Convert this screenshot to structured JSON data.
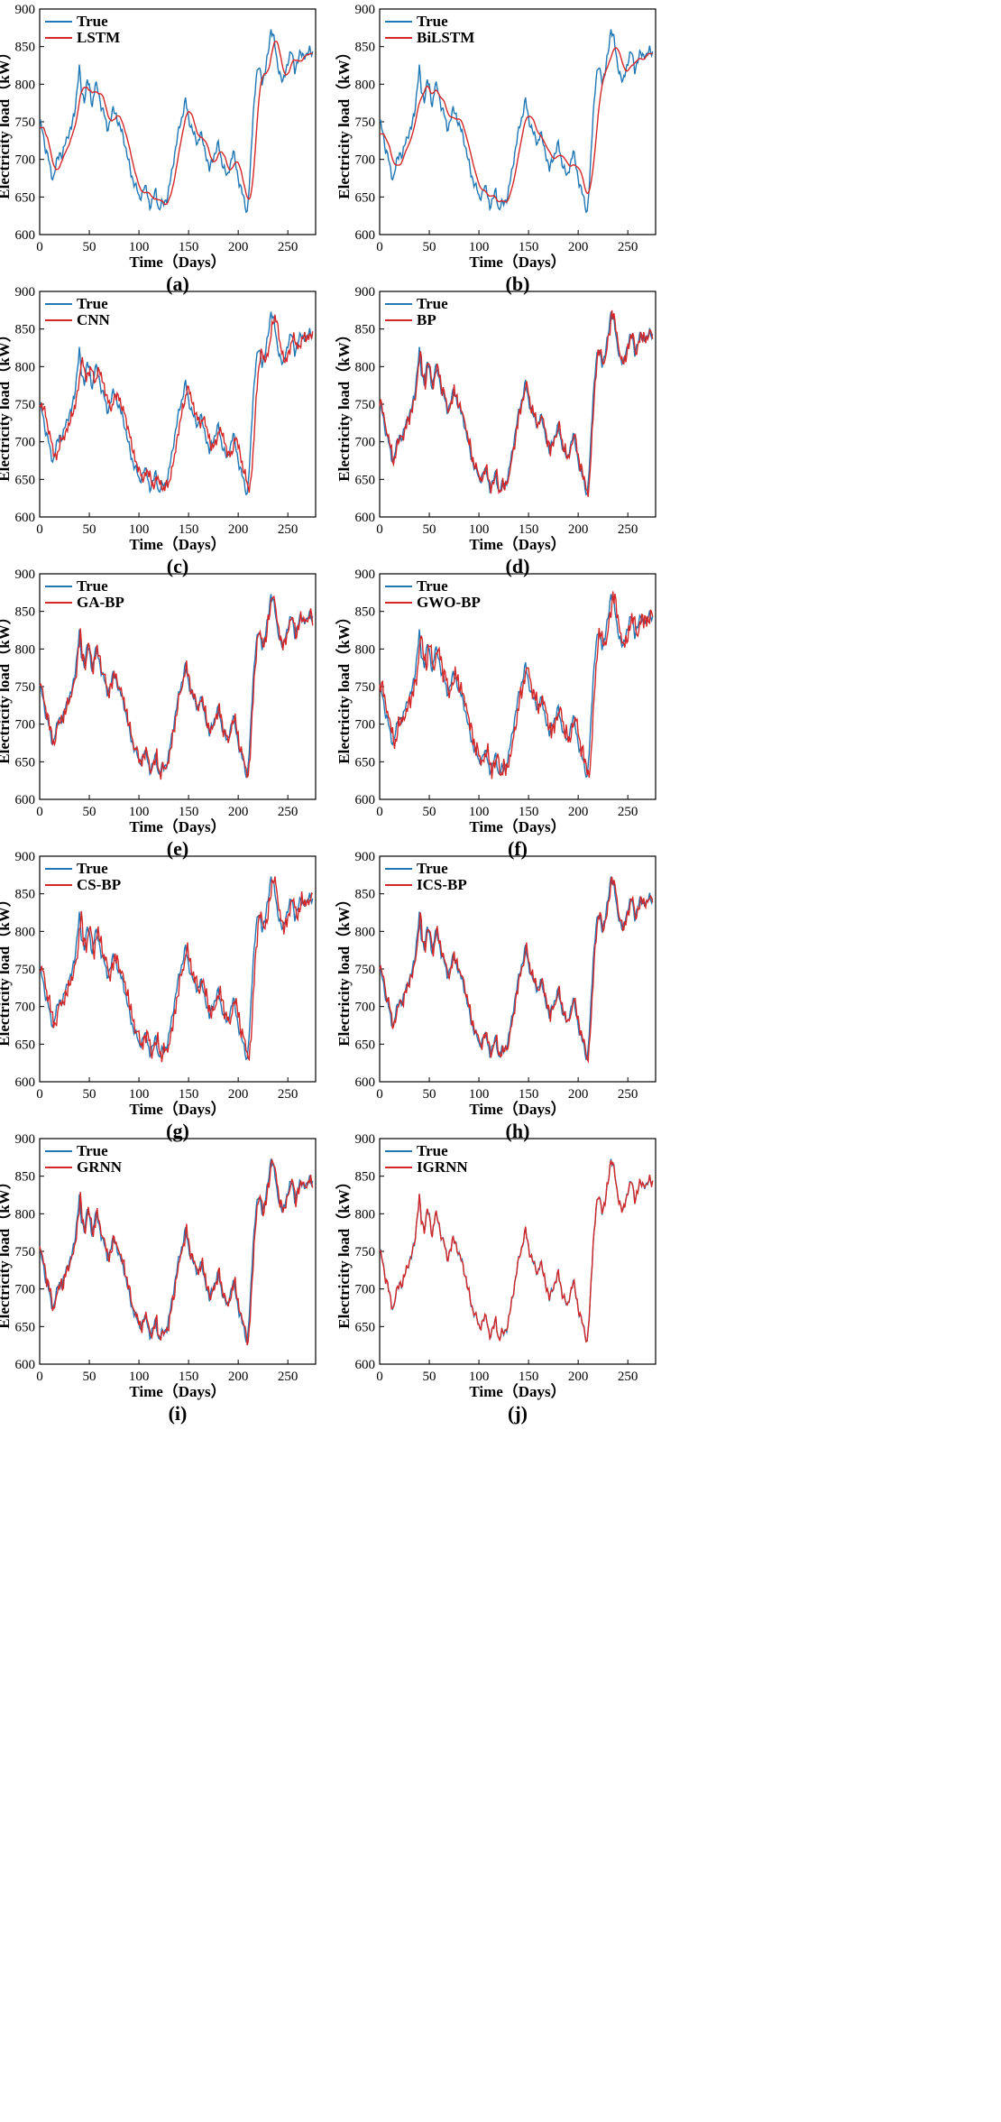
{
  "colors": {
    "true_series": "#1f77b4",
    "pred_series": "#d62728",
    "axis": "#000000"
  },
  "common": {
    "xlabel": "Time（Days）",
    "ylabel": "Electricity load（kW）",
    "xlim": [
      0,
      278
    ],
    "ylim": [
      600,
      900
    ],
    "xticks": [
      0,
      50,
      100,
      150,
      200,
      250
    ],
    "yticks": [
      600,
      650,
      700,
      750,
      800,
      850,
      900
    ]
  },
  "true_series": {
    "name": "True",
    "x": [
      0,
      3,
      6,
      9,
      12,
      14,
      17,
      20,
      23,
      26,
      29,
      32,
      35,
      38,
      40,
      42,
      45,
      48,
      50,
      53,
      56,
      59,
      62,
      65,
      68,
      71,
      74,
      77,
      80,
      83,
      86,
      89,
      92,
      95,
      98,
      100,
      102,
      105,
      108,
      111,
      114,
      117,
      120,
      123,
      126,
      129,
      132,
      135,
      138,
      141,
      144,
      147,
      150,
      153,
      156,
      159,
      162,
      165,
      168,
      171,
      174,
      177,
      180,
      183,
      186,
      189,
      192,
      195,
      198,
      201,
      204,
      207,
      209,
      212,
      215,
      218,
      221,
      224,
      227,
      230,
      233,
      236,
      239,
      242,
      245,
      248,
      251,
      254,
      257,
      260,
      263,
      266,
      269,
      272,
      275
    ],
    "y": [
      748,
      740,
      712,
      700,
      680,
      675,
      695,
      710,
      705,
      722,
      735,
      742,
      760,
      798,
      822,
      790,
      780,
      805,
      795,
      772,
      800,
      790,
      772,
      760,
      740,
      752,
      765,
      760,
      745,
      735,
      720,
      700,
      680,
      670,
      660,
      648,
      652,
      662,
      658,
      638,
      645,
      660,
      632,
      640,
      645,
      650,
      675,
      700,
      722,
      745,
      760,
      778,
      755,
      742,
      730,
      722,
      735,
      720,
      705,
      685,
      700,
      710,
      720,
      700,
      688,
      675,
      695,
      710,
      690,
      670,
      655,
      640,
      630,
      680,
      760,
      810,
      822,
      805,
      815,
      840,
      875,
      860,
      830,
      815,
      800,
      820,
      835,
      842,
      820,
      830,
      842,
      840,
      835,
      848,
      842
    ]
  },
  "chart_data": [
    {
      "type": "line",
      "caption": "(a)",
      "xlabel": "Time（Days）",
      "ylabel": "Electricity load（kW）",
      "xlim": [
        0,
        278
      ],
      "ylim": [
        600,
        900
      ],
      "legend": "top-left",
      "series": [
        {
          "name": "True"
        },
        {
          "name": "LSTM",
          "mode": "smooth",
          "lag": 4,
          "window": 4,
          "noise": 0
        }
      ]
    },
    {
      "type": "line",
      "caption": "(b)",
      "xlabel": "Time（Days）",
      "ylabel": "Electricity load（kW）",
      "xlim": [
        0,
        278
      ],
      "ylim": [
        600,
        900
      ],
      "legend": "top-left",
      "series": [
        {
          "name": "True"
        },
        {
          "name": "BiLSTM",
          "mode": "smooth",
          "lag": 4,
          "window": 6,
          "noise": 0
        }
      ]
    },
    {
      "type": "line",
      "caption": "(c)",
      "xlabel": "Time（Days）",
      "ylabel": "Electricity load（kW）",
      "xlim": [
        0,
        278
      ],
      "ylim": [
        600,
        900
      ],
      "legend": "top-left",
      "series": [
        {
          "name": "True"
        },
        {
          "name": "CNN",
          "mode": "smooth",
          "lag": 3,
          "window": 2,
          "noise": 6
        }
      ]
    },
    {
      "type": "line",
      "caption": "(d)",
      "xlabel": "Time（Days）",
      "ylabel": "Electricity load（kW）",
      "xlim": [
        0,
        278
      ],
      "ylim": [
        600,
        900
      ],
      "legend": "top-left",
      "series": [
        {
          "name": "True"
        },
        {
          "name": "BP",
          "mode": "close",
          "lag": 1,
          "window": 0,
          "noise": 5
        }
      ]
    },
    {
      "type": "line",
      "caption": "(e)",
      "xlabel": "Time（Days）",
      "ylabel": "Electricity load（kW）",
      "xlim": [
        0,
        278
      ],
      "ylim": [
        600,
        900
      ],
      "legend": "top-left",
      "series": [
        {
          "name": "True"
        },
        {
          "name": "GA-BP",
          "mode": "close",
          "lag": 1,
          "window": 0,
          "noise": 6
        }
      ]
    },
    {
      "type": "line",
      "caption": "(f)",
      "xlabel": "Time（Days）",
      "ylabel": "Electricity load（kW）",
      "xlim": [
        0,
        278
      ],
      "ylim": [
        600,
        900
      ],
      "legend": "top-left",
      "series": [
        {
          "name": "True"
        },
        {
          "name": "GWO-BP",
          "mode": "close",
          "lag": 2,
          "window": 0,
          "noise": 8
        }
      ]
    },
    {
      "type": "line",
      "caption": "(g)",
      "xlabel": "Time（Days）",
      "ylabel": "Electricity load（kW）",
      "xlim": [
        0,
        278
      ],
      "ylim": [
        600,
        900
      ],
      "legend": "top-left",
      "series": [
        {
          "name": "True"
        },
        {
          "name": "CS-BP",
          "mode": "close",
          "lag": 2,
          "window": 0,
          "noise": 7
        }
      ]
    },
    {
      "type": "line",
      "caption": "(h)",
      "xlabel": "Time（Days）",
      "ylabel": "Electricity load（kW）",
      "xlim": [
        0,
        278
      ],
      "ylim": [
        600,
        900
      ],
      "legend": "top-left",
      "series": [
        {
          "name": "True"
        },
        {
          "name": "ICS-BP",
          "mode": "close",
          "lag": 1,
          "window": 0,
          "noise": 4
        }
      ]
    },
    {
      "type": "line",
      "caption": "(i)",
      "xlabel": "Time（Days）",
      "ylabel": "Electricity load（kW）",
      "xlim": [
        0,
        278
      ],
      "ylim": [
        600,
        900
      ],
      "legend": "top-left",
      "series": [
        {
          "name": "True"
        },
        {
          "name": "GRNN",
          "mode": "close",
          "lag": 1,
          "window": 0,
          "noise": 5
        }
      ]
    },
    {
      "type": "line",
      "caption": "(j)",
      "xlabel": "Time（Days）",
      "ylabel": "Electricity load（kW）",
      "xlim": [
        0,
        278
      ],
      "ylim": [
        600,
        900
      ],
      "legend": "top-left",
      "series": [
        {
          "name": "True"
        },
        {
          "name": "IGRNN",
          "mode": "close",
          "lag": 0,
          "window": 0,
          "noise": 2
        }
      ]
    }
  ]
}
